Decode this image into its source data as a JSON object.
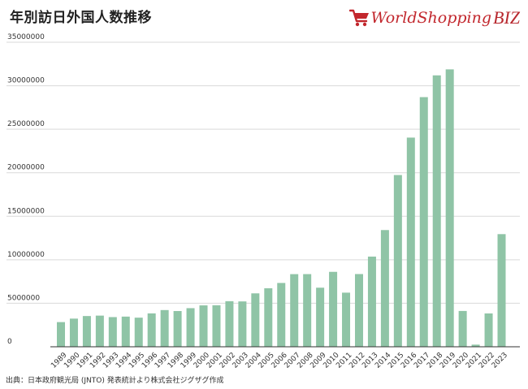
{
  "header": {
    "title": "年別訪日外国人数推移",
    "logo_text": "WorldShopping",
    "logo_biz": "BIZ"
  },
  "source_note": "出典：日本政府観光局 (JNTO) 発表統計より株式会社ジグザグ作成",
  "colors": {
    "bar": "#8fc4a6",
    "grid": "#d9d9d9",
    "axis": "#333333",
    "logo": "#c2272d"
  },
  "chart_data": {
    "type": "bar",
    "categories": [
      "1989",
      "1990",
      "1991",
      "1992",
      "1993",
      "1994",
      "1995",
      "1996",
      "1997",
      "1998",
      "1999",
      "2000",
      "2001",
      "2002",
      "2003",
      "2004",
      "2005",
      "2006",
      "2007",
      "2008",
      "2009",
      "2010",
      "2011",
      "2012",
      "2013",
      "2014",
      "2015",
      "2016",
      "2017",
      "2018",
      "2019",
      "2020",
      "2021",
      "2022",
      "2023"
    ],
    "values": [
      2835064,
      3235860,
      3532651,
      3581540,
      3410447,
      3468055,
      3345274,
      3837113,
      4218208,
      4106057,
      4437863,
      4757146,
      4771555,
      5238963,
      5211725,
      6137905,
      6727926,
      7334077,
      8346969,
      8350835,
      6789658,
      8611175,
      6218752,
      8358105,
      10363904,
      13413467,
      19737409,
      24039700,
      28691073,
      31191856,
      31882049,
      4115828,
      245862,
      3831900,
      12944800
    ],
    "yticks": [
      0,
      5000000,
      10000000,
      15000000,
      20000000,
      25000000,
      30000000,
      35000000
    ],
    "ylim": [
      0,
      35000000
    ],
    "grid": true,
    "legend": "none"
  }
}
